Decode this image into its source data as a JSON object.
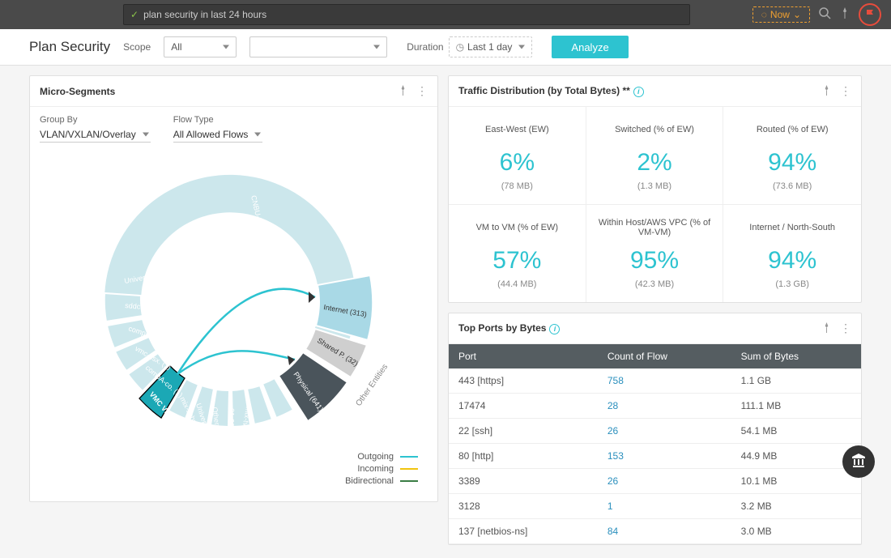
{
  "topbar": {
    "search_value": "plan security in last 24 hours",
    "now_label": "Now"
  },
  "filters": {
    "page_title": "Plan Security",
    "scope_label": "Scope",
    "scope_value": "All",
    "scope2_value": "",
    "duration_label": "Duration",
    "duration_value": "Last 1 day",
    "analyze_label": "Analyze"
  },
  "micro": {
    "title": "Micro-Segments",
    "group_by_label": "Group By",
    "group_by_value": "VLAN/VXLAN/Overlay",
    "flow_type_label": "Flow Type",
    "flow_type_value": "All Allowed Flows",
    "outer_label": "Other Entities",
    "segments": [
      {
        "label": "Internet (313)"
      },
      {
        "label": "Shared P. (32)"
      },
      {
        "label": "Physical (641)"
      }
    ],
    "source_segments": [
      "CNBU-MOL (11)",
      "Universa. (2)",
      "sddc-cgw. (1)",
      "compB-h. (1)",
      "vmc-nsx. (1)",
      "compA-co. (1)",
      "VMC VPN (1)",
      "mix-subn. (1)",
      "Universa. (1)",
      "Others (2)",
      "01-32nm. (1)",
      "mix-tvp. (1)"
    ],
    "legend": {
      "outgoing_label": "Outgoing",
      "incoming_label": "Incoming",
      "bidirectional_label": "Bidirectional",
      "colors": {
        "outgoing": "#2dc3d0",
        "incoming": "#f1c40f",
        "bidirectional": "#3a7d44"
      }
    },
    "colors": {
      "ring_light": "#cce7ec",
      "segment_internet": "#a9d9e6",
      "segment_shared": "#cfcfcf",
      "segment_physical": "#4a545b",
      "selected": "#1ba8b5",
      "flow_line": "#2dc3d0"
    }
  },
  "dist": {
    "title": "Traffic Distribution (by Total Bytes) **",
    "cells": [
      {
        "label": "East-West (EW)",
        "value": "6%",
        "sub": "(78 MB)"
      },
      {
        "label": "Switched (% of EW)",
        "value": "2%",
        "sub": "(1.3 MB)"
      },
      {
        "label": "Routed (% of EW)",
        "value": "94%",
        "sub": "(73.6 MB)"
      },
      {
        "label": "VM to VM (% of EW)",
        "value": "57%",
        "sub": "(44.4 MB)"
      },
      {
        "label": "Within Host/AWS VPC (% of VM-VM)",
        "value": "95%",
        "sub": "(42.3 MB)"
      },
      {
        "label": "Internet / North-South",
        "value": "94%",
        "sub": "(1.3 GB)"
      }
    ]
  },
  "ports": {
    "title": "Top Ports by Bytes",
    "columns": [
      "Port",
      "Count of Flow",
      "Sum of Bytes"
    ],
    "rows": [
      [
        "443 [https]",
        "758",
        "1.1 GB"
      ],
      [
        "17474",
        "28",
        "111.1 MB"
      ],
      [
        "22 [ssh]",
        "26",
        "54.1 MB"
      ],
      [
        "80 [http]",
        "153",
        "44.9 MB"
      ],
      [
        "3389",
        "26",
        "10.1 MB"
      ],
      [
        "3128",
        "1",
        "3.2 MB"
      ],
      [
        "137 [netbios-ns]",
        "84",
        "3.0 MB"
      ]
    ]
  }
}
